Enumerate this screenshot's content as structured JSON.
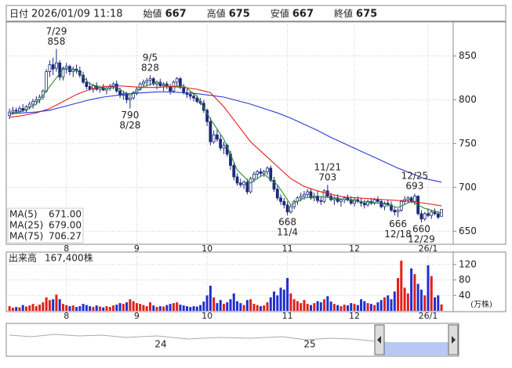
{
  "header": {
    "fields": [
      {
        "label": "日付",
        "value": "2026/01/09 11:18",
        "color": "#000000"
      },
      {
        "label": "始値",
        "value": 667,
        "color": "#000000"
      },
      {
        "label": "高値",
        "value": 675,
        "color": "#e0201b"
      },
      {
        "label": "安値",
        "value": 667,
        "color": "#1e8a1e"
      },
      {
        "label": "終値",
        "value": 675,
        "color": "#000000"
      }
    ]
  },
  "chart_data": [
    {
      "type": "candlestick",
      "ohlc": [
        [
          782,
          790,
          778,
          786
        ],
        [
          786,
          792,
          783,
          788
        ],
        [
          788,
          791,
          784,
          787
        ],
        [
          787,
          793,
          785,
          790
        ],
        [
          790,
          795,
          786,
          788
        ],
        [
          788,
          794,
          785,
          792
        ],
        [
          792,
          798,
          789,
          795
        ],
        [
          795,
          801,
          790,
          798
        ],
        [
          798,
          804,
          794,
          800
        ],
        [
          800,
          806,
          796,
          803
        ],
        [
          803,
          812,
          800,
          810
        ],
        [
          810,
          835,
          808,
          832
        ],
        [
          832,
          845,
          826,
          840
        ],
        [
          840,
          848,
          828,
          835
        ],
        [
          836,
          858,
          832,
          842
        ],
        [
          842,
          845,
          822,
          826
        ],
        [
          826,
          838,
          822,
          836
        ],
        [
          836,
          842,
          830,
          838
        ],
        [
          838,
          840,
          828,
          832
        ],
        [
          832,
          838,
          826,
          835
        ],
        [
          835,
          840,
          830,
          833
        ],
        [
          833,
          838,
          825,
          828
        ],
        [
          828,
          832,
          818,
          820
        ],
        [
          820,
          825,
          812,
          815
        ],
        [
          815,
          820,
          810,
          812
        ],
        [
          812,
          818,
          808,
          816
        ],
        [
          816,
          820,
          810,
          812
        ],
        [
          812,
          816,
          808,
          814
        ],
        [
          814,
          818,
          810,
          811
        ],
        [
          811,
          815,
          806,
          813
        ],
        [
          813,
          818,
          810,
          815
        ],
        [
          815,
          820,
          812,
          818
        ],
        [
          818,
          822,
          808,
          810
        ],
        [
          810,
          814,
          802,
          805
        ],
        [
          805,
          810,
          800,
          807
        ],
        [
          807,
          809,
          796,
          800
        ],
        [
          800,
          804,
          790,
          802
        ],
        [
          802,
          810,
          800,
          808
        ],
        [
          808,
          815,
          805,
          812
        ],
        [
          812,
          820,
          810,
          818
        ],
        [
          818,
          823,
          814,
          820
        ],
        [
          820,
          825,
          815,
          822
        ],
        [
          822,
          828,
          816,
          824
        ],
        [
          824,
          826,
          816,
          818
        ],
        [
          818,
          822,
          812,
          820
        ],
        [
          820,
          824,
          814,
          816
        ],
        [
          816,
          820,
          810,
          818
        ],
        [
          818,
          821,
          812,
          815
        ],
        [
          815,
          818,
          806,
          810
        ],
        [
          810,
          822,
          808,
          820
        ],
        [
          820,
          826,
          816,
          824
        ],
        [
          824,
          826,
          812,
          814
        ],
        [
          814,
          818,
          806,
          808
        ],
        [
          808,
          812,
          802,
          806
        ],
        [
          806,
          810,
          800,
          804
        ],
        [
          804,
          808,
          798,
          802
        ],
        [
          802,
          805,
          796,
          798
        ],
        [
          798,
          802,
          794,
          796
        ],
        [
          796,
          800,
          785,
          788
        ],
        [
          788,
          790,
          770,
          775
        ],
        [
          775,
          780,
          748,
          752
        ],
        [
          752,
          765,
          750,
          760
        ],
        [
          760,
          766,
          752,
          755
        ],
        [
          755,
          760,
          742,
          745
        ],
        [
          745,
          752,
          738,
          748
        ],
        [
          748,
          750,
          735,
          738
        ],
        [
          738,
          742,
          720,
          725
        ],
        [
          725,
          728,
          708,
          712
        ],
        [
          712,
          716,
          702,
          705
        ],
        [
          705,
          710,
          700,
          703
        ],
        [
          703,
          708,
          698,
          706
        ],
        [
          706,
          710,
          692,
          695
        ],
        [
          695,
          712,
          693,
          710
        ],
        [
          710,
          718,
          706,
          715
        ],
        [
          715,
          720,
          710,
          718
        ],
        [
          718,
          722,
          712,
          716
        ],
        [
          716,
          720,
          712,
          718
        ],
        [
          718,
          724,
          714,
          722
        ],
        [
          722,
          725,
          706,
          708
        ],
        [
          708,
          712,
          695,
          698
        ],
        [
          698,
          702,
          685,
          688
        ],
        [
          688,
          692,
          680,
          684
        ],
        [
          684,
          688,
          676,
          680
        ],
        [
          680,
          684,
          668,
          672
        ],
        [
          672,
          680,
          670,
          678
        ],
        [
          678,
          686,
          675,
          684
        ],
        [
          684,
          690,
          680,
          688
        ],
        [
          688,
          694,
          684,
          690
        ],
        [
          690,
          696,
          686,
          692
        ],
        [
          692,
          698,
          688,
          695
        ],
        [
          695,
          698,
          686,
          688
        ],
        [
          688,
          694,
          684,
          690
        ],
        [
          690,
          696,
          682,
          685
        ],
        [
          685,
          690,
          680,
          684
        ],
        [
          684,
          698,
          682,
          696
        ],
        [
          696,
          703,
          688,
          690
        ],
        [
          690,
          694,
          684,
          686
        ],
        [
          686,
          690,
          680,
          688
        ],
        [
          688,
          692,
          682,
          684
        ],
        [
          684,
          688,
          678,
          686
        ],
        [
          686,
          690,
          682,
          688
        ],
        [
          688,
          692,
          684,
          686
        ],
        [
          686,
          690,
          680,
          682
        ],
        [
          682,
          688,
          678,
          686
        ],
        [
          686,
          690,
          682,
          684
        ],
        [
          684,
          688,
          678,
          682
        ],
        [
          682,
          686,
          676,
          680
        ],
        [
          680,
          686,
          678,
          684
        ],
        [
          684,
          688,
          680,
          682
        ],
        [
          682,
          688,
          680,
          686
        ],
        [
          686,
          690,
          682,
          684
        ],
        [
          684,
          686,
          676,
          678
        ],
        [
          678,
          684,
          674,
          682
        ],
        [
          682,
          686,
          678,
          680
        ],
        [
          680,
          684,
          672,
          674
        ],
        [
          674,
          678,
          668,
          672
        ],
        [
          672,
          676,
          666,
          674
        ],
        [
          674,
          686,
          672,
          684
        ],
        [
          684,
          690,
          680,
          686
        ],
        [
          686,
          690,
          682,
          688
        ],
        [
          688,
          690,
          682,
          684
        ],
        [
          684,
          693,
          680,
          690
        ],
        [
          690,
          691,
          668,
          670
        ],
        [
          670,
          674,
          660,
          664
        ],
        [
          664,
          672,
          662,
          670
        ],
        [
          670,
          676,
          666,
          668
        ],
        [
          668,
          674,
          664,
          672
        ],
        [
          672,
          676,
          668,
          670
        ],
        [
          670,
          672,
          664,
          666
        ],
        [
          667,
          675,
          667,
          675
        ]
      ],
      "up_color": "#ffffff",
      "down_color": "#1c2a7a",
      "xlim": [
        -0.5,
        132.5
      ],
      "xticks": [
        {
          "value": 17,
          "label": "8"
        },
        {
          "value": 38,
          "label": "9"
        },
        {
          "value": 59,
          "label": "10"
        },
        {
          "value": 83,
          "label": "11"
        },
        {
          "value": 103,
          "label": "12"
        },
        {
          "value": 125,
          "label": "26/1"
        }
      ],
      "ylim": [
        636,
        887
      ],
      "yticks": [
        650,
        700,
        750,
        800,
        850
      ],
      "grid": true,
      "series": [
        {
          "name": "MA(5)",
          "color": "#2e8b2e",
          "legend_value": "671.00",
          "x": [
            0,
            4,
            8,
            12,
            16,
            20,
            24,
            28,
            32,
            36,
            40,
            44,
            48,
            52,
            56,
            60,
            64,
            68,
            72,
            76,
            80,
            84,
            88,
            92,
            96,
            100,
            104,
            108,
            112,
            116,
            120,
            124,
            129
          ],
          "values": [
            784,
            787,
            795,
            815,
            835,
            834,
            818,
            813,
            814,
            805,
            815,
            820,
            815,
            816,
            804,
            778,
            755,
            720,
            705,
            715,
            703,
            680,
            688,
            690,
            688,
            686,
            684,
            683,
            681,
            677,
            684,
            676,
            671
          ]
        },
        {
          "name": "MA(25)",
          "color": "#e0201b",
          "legend_value": "679.00",
          "x": [
            0,
            4,
            8,
            12,
            16,
            20,
            24,
            28,
            32,
            36,
            40,
            44,
            48,
            52,
            56,
            60,
            64,
            68,
            72,
            76,
            80,
            84,
            88,
            92,
            96,
            100,
            104,
            108,
            112,
            116,
            120,
            124,
            129
          ],
          "values": [
            780,
            782,
            785,
            790,
            798,
            806,
            812,
            815,
            816,
            815,
            814,
            814,
            815,
            814,
            812,
            808,
            792,
            772,
            752,
            738,
            724,
            710,
            701,
            696,
            692,
            689,
            688,
            687,
            686,
            685,
            684,
            682,
            679
          ]
        },
        {
          "name": "MA(75)",
          "color": "#2a3bd6",
          "legend_value": "706.27",
          "x": [
            0,
            4,
            8,
            12,
            16,
            20,
            24,
            28,
            32,
            36,
            40,
            44,
            48,
            52,
            56,
            60,
            64,
            68,
            72,
            76,
            80,
            84,
            88,
            92,
            96,
            100,
            104,
            108,
            112,
            116,
            120,
            124,
            129
          ],
          "values": [
            784,
            785,
            786,
            788,
            792,
            796,
            800,
            803,
            805,
            807,
            808,
            809,
            809,
            808,
            807,
            805,
            803,
            799,
            795,
            790,
            785,
            779,
            772,
            765,
            757,
            750,
            743,
            736,
            729,
            722,
            716,
            710,
            706
          ]
        }
      ],
      "annotations": [
        {
          "x": 14,
          "value": 858,
          "date": "7/29",
          "position": "above"
        },
        {
          "x": 36,
          "value": 790,
          "date": "8/28",
          "position": "below"
        },
        {
          "x": 42,
          "value": 828,
          "date": "9/5",
          "position": "above"
        },
        {
          "x": 83,
          "value": 668,
          "date": "11/4",
          "position": "below"
        },
        {
          "x": 95,
          "value": 703,
          "date": "11/21",
          "position": "above"
        },
        {
          "x": 116,
          "value": 666,
          "date": "12/18",
          "position": "below"
        },
        {
          "x": 121,
          "value": 693,
          "date": "12/25",
          "position": "above"
        },
        {
          "x": 123,
          "value": 660,
          "date": "12/29",
          "position": "below"
        }
      ]
    },
    {
      "type": "bar",
      "title": "出来高",
      "latest_label": "167,400株",
      "unit": "(万株)",
      "up_color": "#e0201b",
      "down_color": "#1f2fd0",
      "xlim": [
        -0.5,
        132.5
      ],
      "xticks": [
        {
          "value": 17,
          "label": "8"
        },
        {
          "value": 38,
          "label": "9"
        },
        {
          "value": 59,
          "label": "10"
        },
        {
          "value": 83,
          "label": "11"
        },
        {
          "value": 103,
          "label": "12"
        },
        {
          "value": 125,
          "label": "26/1"
        }
      ],
      "ylim": [
        0,
        150
      ],
      "yticks": [
        40,
        80,
        120
      ],
      "grid": true,
      "values": [
        12,
        8,
        10,
        9,
        15,
        11,
        14,
        18,
        12,
        16,
        22,
        35,
        28,
        30,
        42,
        30,
        18,
        15,
        12,
        14,
        10,
        12,
        18,
        15,
        12,
        10,
        14,
        11,
        9,
        12,
        10,
        14,
        16,
        20,
        18,
        22,
        30,
        25,
        20,
        18,
        15,
        12,
        22,
        14,
        10,
        12,
        11,
        15,
        18,
        20,
        22,
        16,
        14,
        12,
        10,
        12,
        11,
        15,
        24,
        40,
        65,
        35,
        20,
        28,
        18,
        22,
        30,
        45,
        25,
        20,
        15,
        28,
        30,
        18,
        15,
        12,
        14,
        22,
        35,
        50,
        40,
        60,
        55,
        85,
        45,
        30,
        25,
        20,
        28,
        18,
        15,
        20,
        25,
        22,
        30,
        38,
        24,
        18,
        15,
        12,
        16,
        14,
        20,
        18,
        15,
        30,
        25,
        20,
        18,
        15,
        22,
        28,
        35,
        40,
        30,
        50,
        85,
        130,
        60,
        45,
        110,
        95,
        70,
        55,
        40,
        118,
        90,
        35,
        40,
        16.74
      ]
    }
  ],
  "navigator": {
    "labels": [
      "24",
      "25"
    ]
  }
}
